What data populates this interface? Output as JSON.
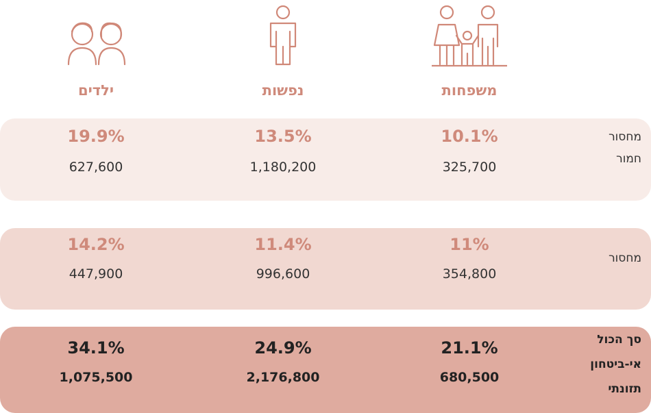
{
  "header": {
    "columns": [
      "משפחות",
      "נפשות",
      "ילדים"
    ]
  },
  "rows": [
    {
      "label_lines": [
        "מחסור",
        "חמור"
      ],
      "cells": [
        {
          "percent": "10.1%",
          "count": "325,700"
        },
        {
          "percent": "13.5%",
          "count": "1,180,200"
        },
        {
          "percent": "19.9%",
          "count": "627,600"
        }
      ]
    },
    {
      "label_lines": [
        "מחסור"
      ],
      "cells": [
        {
          "percent": "11%",
          "count": "354,800"
        },
        {
          "percent": "11.4%",
          "count": "996,600"
        },
        {
          "percent": "14.2%",
          "count": "447,900"
        }
      ]
    },
    {
      "label_lines": [
        "סך הכול",
        "אי-ביטחון",
        "תזונתי"
      ],
      "cells": [
        {
          "percent": "21.1%",
          "count": "680,500"
        },
        {
          "percent": "24.9%",
          "count": "2,176,800"
        },
        {
          "percent": "34.1%",
          "count": "1,075,500"
        }
      ]
    }
  ]
}
